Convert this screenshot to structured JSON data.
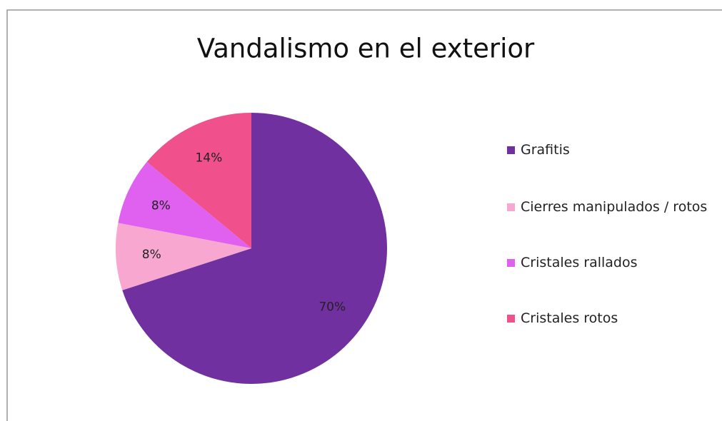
{
  "chart_data": {
    "type": "pie",
    "title": "Vandalismo en el exterior",
    "categories": [
      "Grafitis",
      "Cierres manipulados / rotos",
      "Cristales rallados",
      "Cristales rotos"
    ],
    "values": [
      70,
      8,
      8,
      14
    ],
    "value_labels": [
      "70%",
      "8%",
      "8%",
      "14%"
    ],
    "colors": [
      "#7030a0",
      "#f8a8d0",
      "#e060f0",
      "#f0508c"
    ],
    "legend": "right"
  }
}
